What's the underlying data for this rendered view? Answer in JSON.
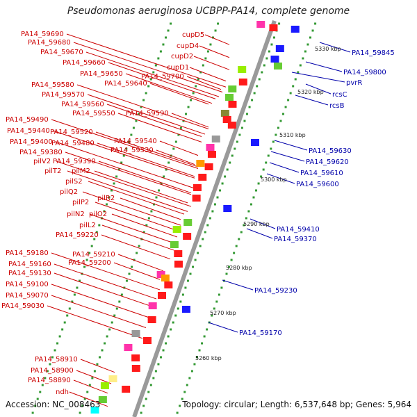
{
  "title": "Pseudomonas aeruginosa UCBPP-PA14, complete genome",
  "footer": {
    "accession": "Accession: NC_008463",
    "topology": "Topology: circular; Length: 6,537,648 bp; Genes: 5,964"
  },
  "colors": {
    "left_labels": "#cc0000",
    "right_labels": "#0000aa",
    "backbone": "#9a9a9a",
    "ticks": "#339933"
  },
  "kbp_ticks": [
    "5330 kbp",
    "5320 kbp",
    "5310 kbp",
    "5300 kbp",
    "5290 kbp",
    "5280 kbp",
    "5270 kbp",
    "5260 kbp"
  ],
  "left_labels": [
    "PA14_59690",
    "PA14_59680",
    "PA14_59670",
    "PA14_59660",
    "PA14_59650",
    "PA14_59640",
    "PA14_59580",
    "PA14_59570",
    "PA14_59560",
    "PA14_59550",
    "PA14_59490",
    "PA14_59440",
    "PA14_59400",
    "PA14_59380",
    "PA14_59520",
    "PA14_59480",
    "PA14_59540",
    "PA14_59530",
    "PA14_59390",
    "pilV2",
    "pilT2",
    "pilM2",
    "pilS2",
    "pilQ2",
    "pilR2",
    "pilP2",
    "pilN2",
    "pilO2",
    "pilL2",
    "PA14_59220",
    "PA14_59180",
    "PA14_59210",
    "PA14_59160",
    "PA14_59200",
    "PA14_59130",
    "PA14_59100",
    "PA14_59070",
    "PA14_59030",
    "PA14_58910",
    "PA14_58900",
    "PA14_58890",
    "ndh",
    "cupD5",
    "cupD4",
    "cupD2",
    "cupD1",
    "PA14_59700",
    "PA14_59590"
  ],
  "right_labels": [
    "PA14_59845",
    "PA14_59800",
    "pvrR",
    "rcsC",
    "rcsB",
    "PA14_59630",
    "PA14_59620",
    "PA14_59610",
    "PA14_59600",
    "PA14_59410",
    "PA14_59370",
    "PA14_59230",
    "PA14_59170"
  ]
}
